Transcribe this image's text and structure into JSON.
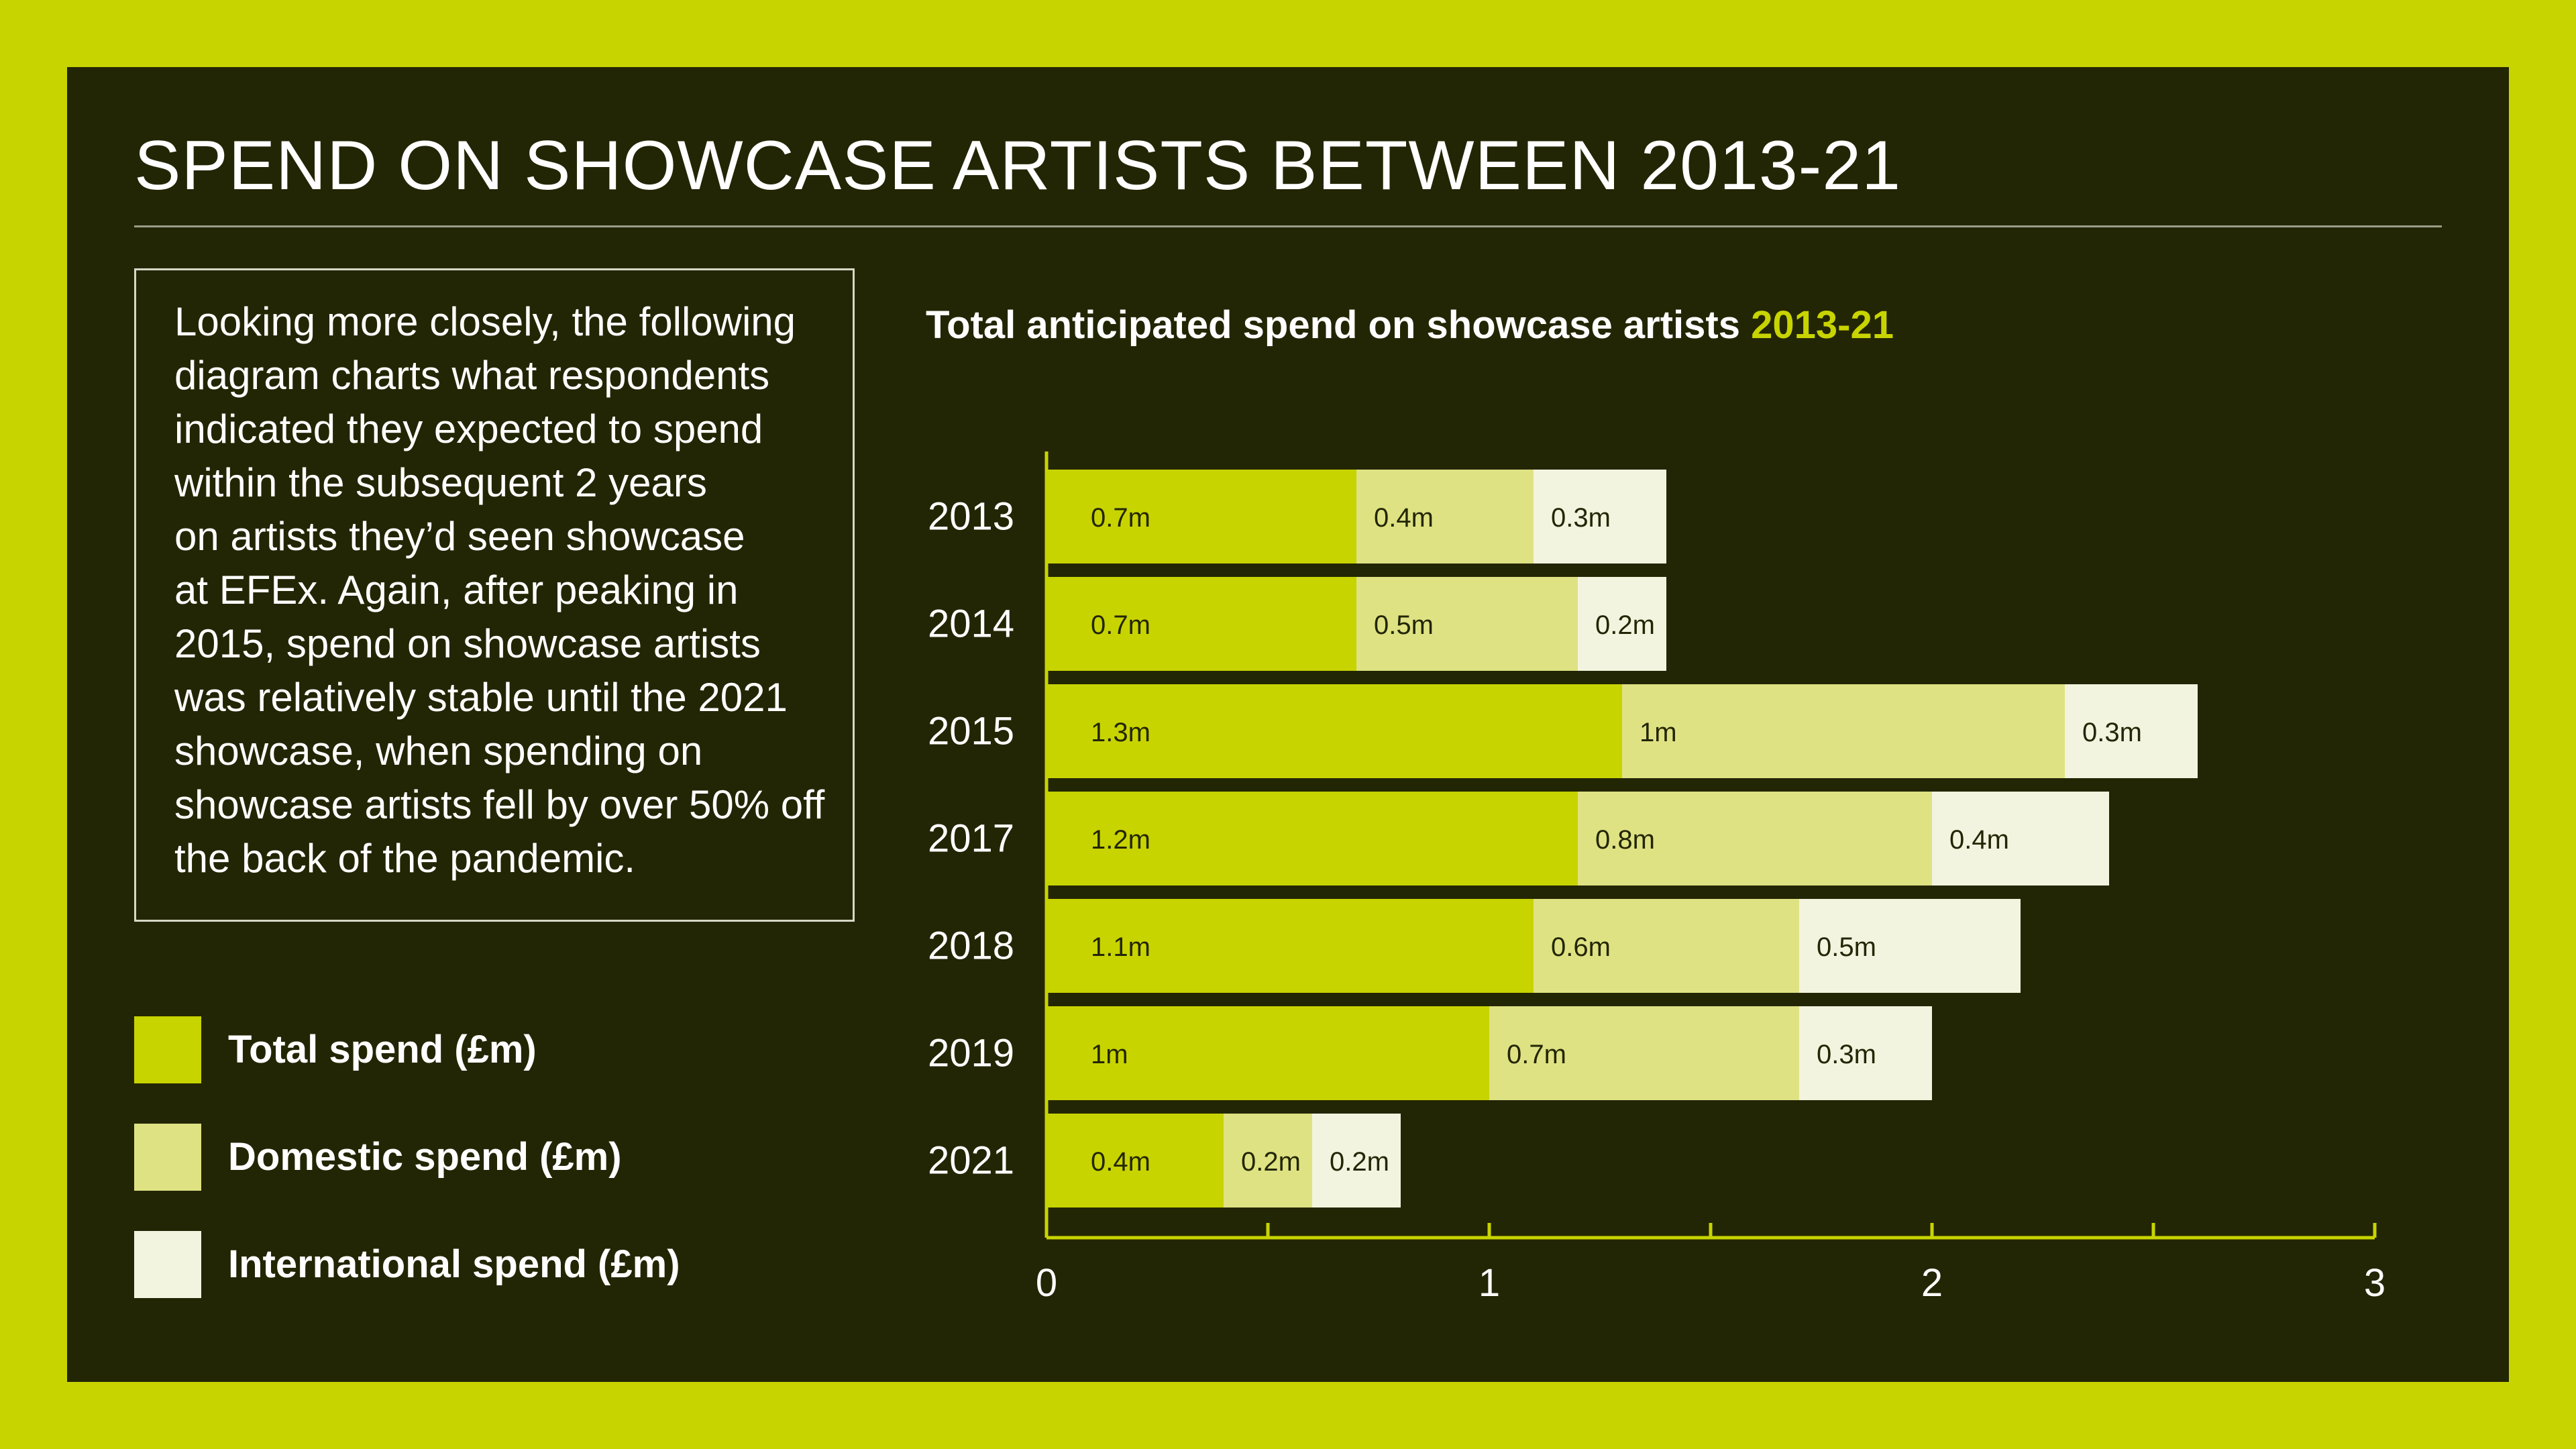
{
  "title": "SPEND ON SHOWCASE ARTISTS BETWEEN 2013-21",
  "intro_text": "Looking more closely, the following\ndiagram charts what respondents\nindicated they expected to spend\nwithin the subsequent 2 years\non artists they’d seen showcase\nat EFEx. Again, after peaking in\n2015, spend on showcase artists\nwas relatively stable until the 2021\nshowcase, when spending on\nshowcase artists fell by over 50% off\nthe back of the pandemic.",
  "legend": [
    {
      "label": "Total spend (£m)",
      "color": "#c8d400"
    },
    {
      "label": "Domestic spend (£m)",
      "color": "#dfe283"
    },
    {
      "label": "International spend (£m)",
      "color": "#f3f4df"
    }
  ],
  "colors": {
    "background": "#c8d400",
    "panel": "#232604",
    "axis": "#c8d400",
    "bar_text": "#232604",
    "text": "#ffffff"
  },
  "chart_data": {
    "type": "bar",
    "orientation": "horizontal",
    "stacked": true,
    "title": "Total anticipated spend on showcase artists",
    "title_highlight": "2013-21",
    "categories": [
      "2013",
      "2014",
      "2015",
      "2017",
      "2018",
      "2019",
      "2021"
    ],
    "series": [
      {
        "name": "Total spend (£m)",
        "values": [
          0.7,
          0.7,
          1.3,
          1.2,
          1.1,
          1.0,
          0.4
        ],
        "labels": [
          "0.7m",
          "0.7m",
          "1.3m",
          "1.2m",
          "1.1m",
          "1m",
          "0.4m"
        ]
      },
      {
        "name": "Domestic spend (£m)",
        "values": [
          0.4,
          0.5,
          1.0,
          0.8,
          0.6,
          0.7,
          0.2
        ],
        "labels": [
          "0.4m",
          "0.5m",
          "1m",
          "0.8m",
          "0.6m",
          "0.7m",
          "0.2m"
        ]
      },
      {
        "name": "International spend (£m)",
        "values": [
          0.3,
          0.2,
          0.3,
          0.4,
          0.5,
          0.3,
          0.2
        ],
        "labels": [
          "0.3m",
          "0.2m",
          "0.3m",
          "0.4m",
          "0.5m",
          "0.3m",
          "0.2m"
        ]
      }
    ],
    "xlim": [
      0,
      3
    ],
    "x_ticks": [
      0,
      1,
      2,
      3
    ],
    "x_minor_ticks": [
      0.5,
      1.5,
      2.5
    ],
    "grid": false,
    "legend_position": "bottom-left"
  }
}
